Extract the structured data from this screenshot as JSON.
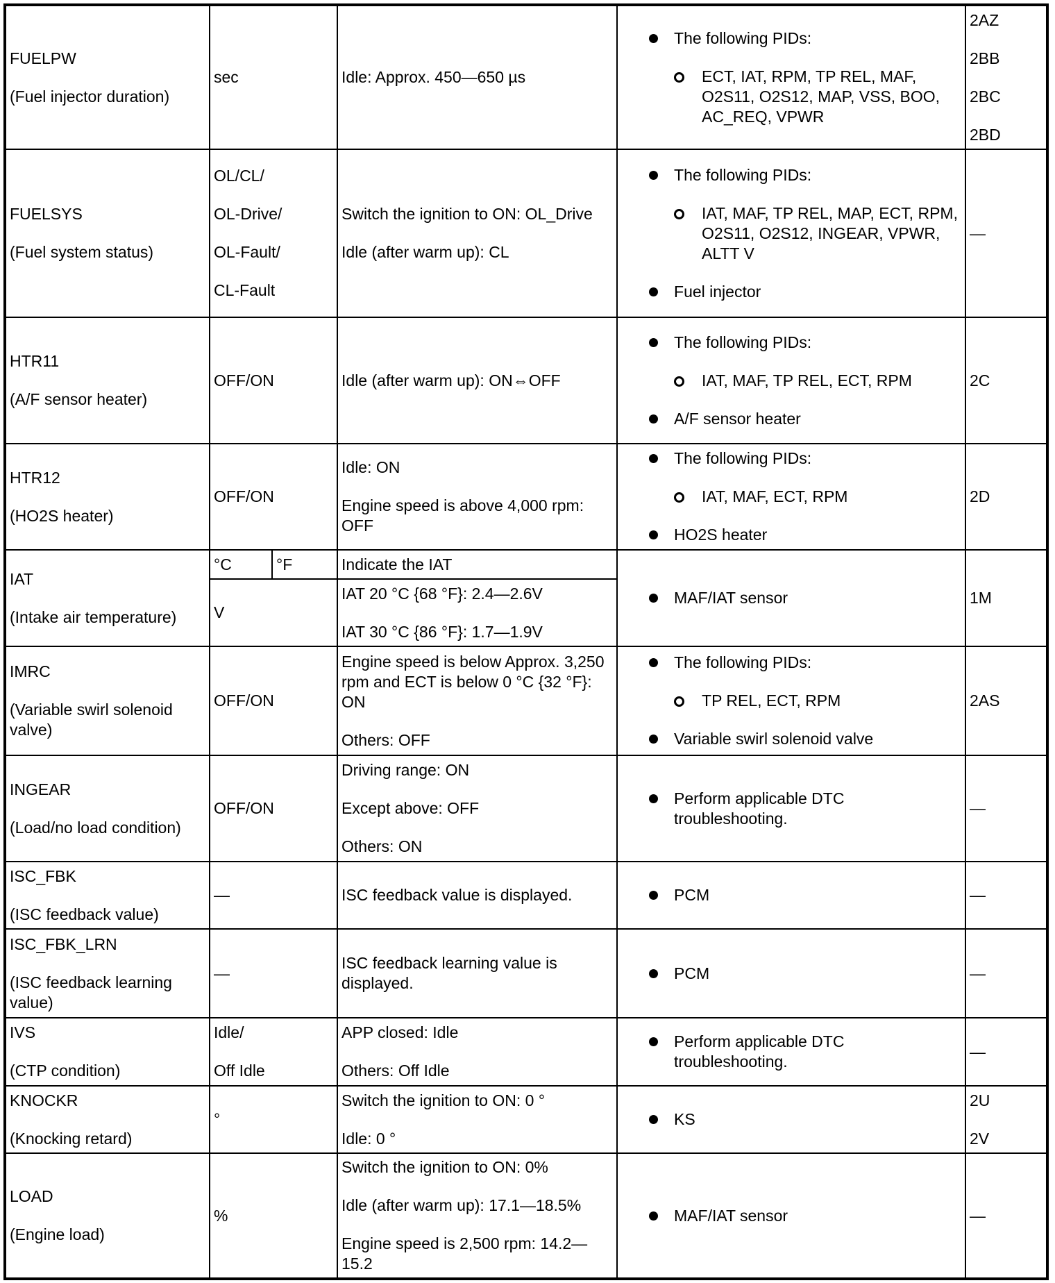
{
  "rows": [
    {
      "name": "FUELPW",
      "desc": "(Fuel injector duration)",
      "unit": [
        "sec"
      ],
      "condition": [
        "Idle: Approx. 450—650 µs"
      ],
      "checks": [
        {
          "text": "The following PIDs:",
          "sub": "ECT, IAT, RPM, TP REL, MAF, O2S11, O2S12, MAP, VSS, BOO, AC_REQ, VPWR"
        }
      ],
      "ref": [
        "2AZ",
        "2BB",
        "2BC",
        "2BD"
      ]
    },
    {
      "name": "FUELSYS",
      "desc": "(Fuel system status)",
      "unit": [
        "OL/CL/",
        "OL-Drive/",
        "OL-Fault/",
        "CL-Fault"
      ],
      "condition": [
        "Switch the ignition to ON: OL_Drive",
        "Idle (after warm up): CL"
      ],
      "checks": [
        {
          "text": "The following PIDs:",
          "sub": "IAT, MAF, TP REL, MAP, ECT, RPM, O2S11, O2S12, INGEAR, VPWR, ALTT V"
        },
        {
          "text": "Fuel injector"
        }
      ],
      "ref": [
        "—"
      ]
    },
    {
      "name": "HTR11",
      "desc": "(A/F sensor heater)",
      "unit": [
        "OFF/ON"
      ],
      "condition": [
        "Idle (after warm up): ON⇔OFF"
      ],
      "checks": [
        {
          "text": "The following PIDs:",
          "sub": "IAT, MAF, TP REL, ECT, RPM"
        },
        {
          "text": "A/F sensor heater"
        }
      ],
      "ref": [
        "2C"
      ]
    },
    {
      "name": "HTR12",
      "desc": "(HO2S heater)",
      "unit": [
        "OFF/ON"
      ],
      "condition": [
        "Idle: ON",
        "Engine speed is above 4,000 rpm: OFF"
      ],
      "checks": [
        {
          "text": "The following PIDs:",
          "sub": "IAT, MAF, ECT, RPM"
        },
        {
          "text": "HO2S heater"
        }
      ],
      "ref": [
        "2D"
      ]
    },
    {
      "name": "IAT",
      "desc": "(Intake air temperature)",
      "iat": true,
      "unit_c": "°C",
      "unit_f": "°F",
      "unit_v": "V",
      "condition_top": "Indicate the IAT",
      "condition": [
        "IAT 20 °C {68 °F}: 2.4—2.6V",
        "IAT 30 °C {86 °F}: 1.7—1.9V"
      ],
      "checks": [
        {
          "text": "MAF/IAT sensor"
        }
      ],
      "ref": [
        "1M"
      ]
    },
    {
      "name": "IMRC",
      "desc": "(Variable swirl solenoid valve)",
      "unit": [
        "OFF/ON"
      ],
      "condition": [
        "Engine speed is below Approx. 3,250 rpm and ECT is below 0 °C {32 °F}: ON",
        "Others: OFF"
      ],
      "checks": [
        {
          "text": "The following PIDs:",
          "sub": "TP REL, ECT, RPM"
        },
        {
          "text": "Variable swirl solenoid valve"
        }
      ],
      "ref": [
        "2AS"
      ]
    },
    {
      "name": "INGEAR",
      "desc": "(Load/no load condition)",
      "unit": [
        "OFF/ON"
      ],
      "condition": [
        "Driving range: ON",
        "Except above: OFF",
        "Others: ON"
      ],
      "checks": [
        {
          "text": "Perform applicable DTC troubleshooting."
        }
      ],
      "ref": [
        "—"
      ]
    },
    {
      "name": "ISC_FBK",
      "desc": "(ISC feedback value)",
      "unit": [
        "—"
      ],
      "condition": [
        "ISC feedback value is displayed."
      ],
      "checks": [
        {
          "text": "PCM"
        }
      ],
      "ref": [
        "—"
      ]
    },
    {
      "name": "ISC_FBK_LRN",
      "desc": "(ISC feedback learning value)",
      "unit": [
        "—"
      ],
      "condition": [
        "ISC feedback learning value is displayed."
      ],
      "checks": [
        {
          "text": "PCM"
        }
      ],
      "ref": [
        "—"
      ]
    },
    {
      "name": "IVS",
      "desc": "(CTP condition)",
      "unit": [
        "Idle/",
        "Off Idle"
      ],
      "condition": [
        "APP closed: Idle",
        "Others: Off Idle"
      ],
      "checks": [
        {
          "text": "Perform applicable DTC troubleshooting."
        }
      ],
      "ref": [
        "—"
      ]
    },
    {
      "name": "KNOCKR",
      "desc": "(Knocking retard)",
      "unit": [
        "°"
      ],
      "condition": [
        "Switch the ignition to ON: 0 °",
        "Idle: 0 °"
      ],
      "checks": [
        {
          "text": "KS"
        }
      ],
      "ref": [
        "2U",
        "2V"
      ]
    },
    {
      "name": "LOAD",
      "desc": "(Engine load)",
      "unit": [
        "%"
      ],
      "condition": [
        "Switch the ignition to ON: 0%",
        "Idle (after warm up): 17.1—18.5%",
        "Engine speed is 2,500 rpm: 14.2—15.2"
      ],
      "checks": [
        {
          "text": "MAF/IAT sensor"
        }
      ],
      "ref": [
        "—"
      ]
    }
  ]
}
